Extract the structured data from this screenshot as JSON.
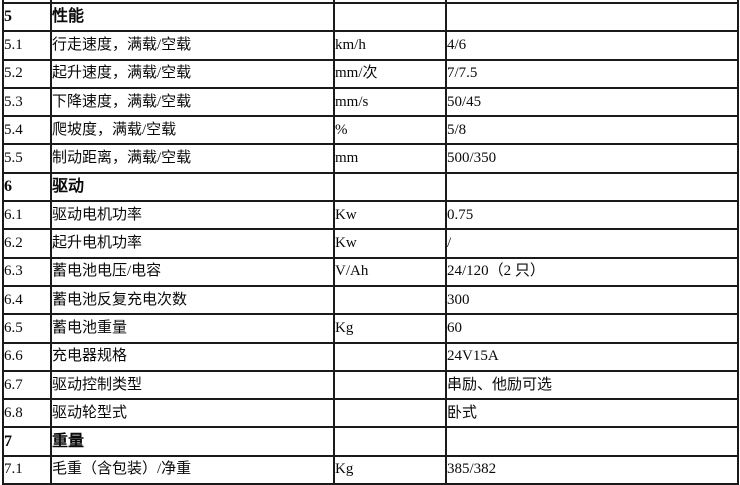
{
  "document": {
    "type": "specification-table",
    "language": "zh-CN",
    "border_color": "#1a1a1a",
    "background_color": "#ffffff",
    "text_color": "#0a0a0a"
  },
  "table": {
    "columns": [
      {
        "key": "no",
        "semantic": "item-number"
      },
      {
        "key": "name",
        "semantic": "parameter-name"
      },
      {
        "key": "unit",
        "semantic": "unit"
      },
      {
        "key": "value",
        "semantic": "value"
      }
    ],
    "rows": [
      {
        "no": "5",
        "name": "性能",
        "unit": "",
        "value": "",
        "section": true
      },
      {
        "no": "5.1",
        "name": "行走速度，满载/空载",
        "unit": "km/h",
        "value": "4/6",
        "section": false
      },
      {
        "no": "5.2",
        "name": "起升速度，满载/空载",
        "unit": "mm/次",
        "value": "7/7.5",
        "section": false
      },
      {
        "no": "5.3",
        "name": "下降速度，满载/空载",
        "unit": "mm/s",
        "value": "50/45",
        "section": false
      },
      {
        "no": "5.4",
        "name": "爬坡度，满载/空载",
        "unit": "%",
        "value": "5/8",
        "section": false
      },
      {
        "no": "5.5",
        "name": "制动距离，满载/空载",
        "unit": "mm",
        "value": "500/350",
        "section": false
      },
      {
        "no": "6",
        "name": "驱动",
        "unit": "",
        "value": "",
        "section": true
      },
      {
        "no": "6.1",
        "name": "驱动电机功率",
        "unit": "Kw",
        "value": "0.75",
        "section": false
      },
      {
        "no": "6.2",
        "name": "起升电机功率",
        "unit": "Kw",
        "value": "/",
        "section": false
      },
      {
        "no": "6.3",
        "name": "蓄电池电压/电容",
        "unit": "V/Ah",
        "value": "24/120（2 只）",
        "section": false
      },
      {
        "no": "6.4",
        "name": "蓄电池反复充电次数",
        "unit": "",
        "value": "300",
        "section": false
      },
      {
        "no": "6.5",
        "name": "蓄电池重量",
        "unit": "Kg",
        "value": "60",
        "section": false
      },
      {
        "no": "6.6",
        "name": "充电器规格",
        "unit": "",
        "value": "24V15A",
        "section": false
      },
      {
        "no": "6.7",
        "name": "驱动控制类型",
        "unit": "",
        "value": "串励、他励可选",
        "section": false
      },
      {
        "no": "6.8",
        "name": "驱动轮型式",
        "unit": "",
        "value": "卧式",
        "section": false
      },
      {
        "no": "7",
        "name": "重量",
        "unit": "",
        "value": "",
        "section": true
      },
      {
        "no": "7.1",
        "name": "毛重（含包装）/净重",
        "unit": "Kg",
        "value": "385/382",
        "section": false
      }
    ]
  }
}
